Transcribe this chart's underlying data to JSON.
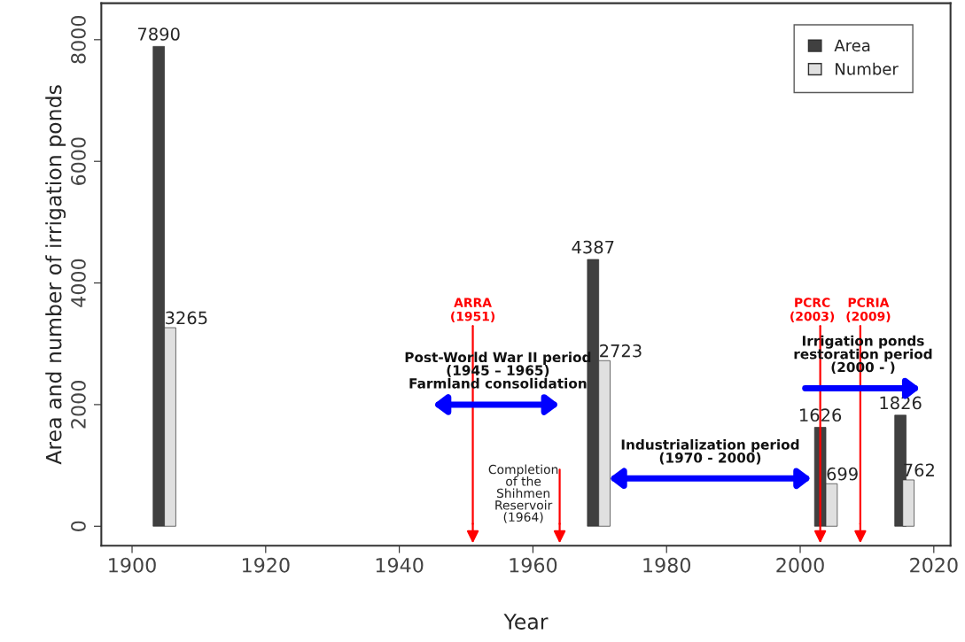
{
  "chart_data": {
    "type": "bar",
    "xlabel": "Year",
    "ylabel": "Area and number of irrigation ponds",
    "series": [
      {
        "name": "Area",
        "color": "#404040",
        "x": [
          1904,
          1969,
          2003,
          2015
        ],
        "values": [
          7890,
          4387,
          1626,
          1826
        ]
      },
      {
        "name": "Number",
        "color": "#e0e0e0",
        "x": [
          1905.7,
          1970.7,
          2004.7,
          2016.2
        ],
        "values": [
          3265,
          2723,
          699,
          762
        ]
      }
    ],
    "xlim": [
      1895.4,
      2022.5
    ],
    "xticks": [
      1900,
      1920,
      1940,
      1960,
      1980,
      2000,
      2020
    ],
    "ylim": [
      -320,
      8600
    ],
    "yticks": [
      0,
      2000,
      4000,
      6000,
      8000
    ],
    "data_labels": true,
    "legend": "top right",
    "grid": false,
    "ref_lines": [
      {
        "axis": "x",
        "value": 1951,
        "label": "ARRA\n(1951)",
        "color": "#ff0000"
      },
      {
        "axis": "x",
        "value": 1964,
        "color": "#ff0000"
      },
      {
        "axis": "x",
        "value": 2003,
        "label": "PCRC\n(2003)",
        "color": "#ff0000"
      },
      {
        "axis": "x",
        "value": 2009,
        "label": "PCRIA\n(2009)",
        "color": "#ff0000"
      }
    ],
    "annotations": [
      "Completion\nof the\nShihmen\nReservoir\n(1964)",
      "Post-World War II period\n(1945 – 1965)\nFarmland consolidation",
      "Industrialization period\n(1970 - 2000)",
      "Irrigation ponds\nrestoration period\n(2000 - )"
    ]
  }
}
